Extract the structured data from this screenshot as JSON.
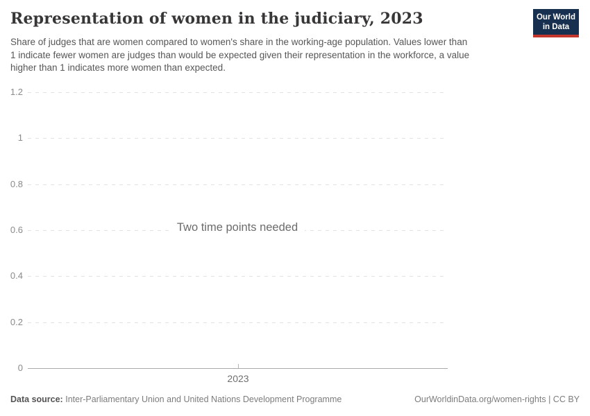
{
  "header": {
    "title": "Representation of women in the judiciary, 2023",
    "subtitle_lines": [
      "Share of judges that are women compared to women's share in the working-age population. Values lower than",
      "1 indicate fewer women are judges than would be expected given their representation in the workforce, a value",
      "higher than 1 indicates more women than expected."
    ],
    "logo": {
      "line1": "Our World",
      "line2": "in Data"
    }
  },
  "chart_data": {
    "type": "line",
    "title": "Representation of women in the judiciary, 2023",
    "empty_message": "Two time points needed",
    "series": [],
    "x_tick_labels": [
      "2023"
    ],
    "y_tick_labels": [
      "0",
      "0.2",
      "0.4",
      "0.6",
      "0.8",
      "1",
      "1.2"
    ],
    "ylim": [
      0,
      1.2
    ],
    "xlabel": "",
    "ylabel": "",
    "grid": "horizontal-dashed",
    "legend": "none"
  },
  "footer": {
    "source_label": "Data source:",
    "source_text": "Inter-Parliamentary Union and United Nations Development Programme",
    "link_text": "OurWorldinData.org/women-rights",
    "separator": "|",
    "license_text": "CC BY"
  },
  "colors": {
    "logo_navy": "#18304f",
    "logo_red": "#c4352c",
    "grid": "#e2e2e2",
    "axis": "#a8a8a8",
    "muted_text": "#8a8a8a"
  }
}
